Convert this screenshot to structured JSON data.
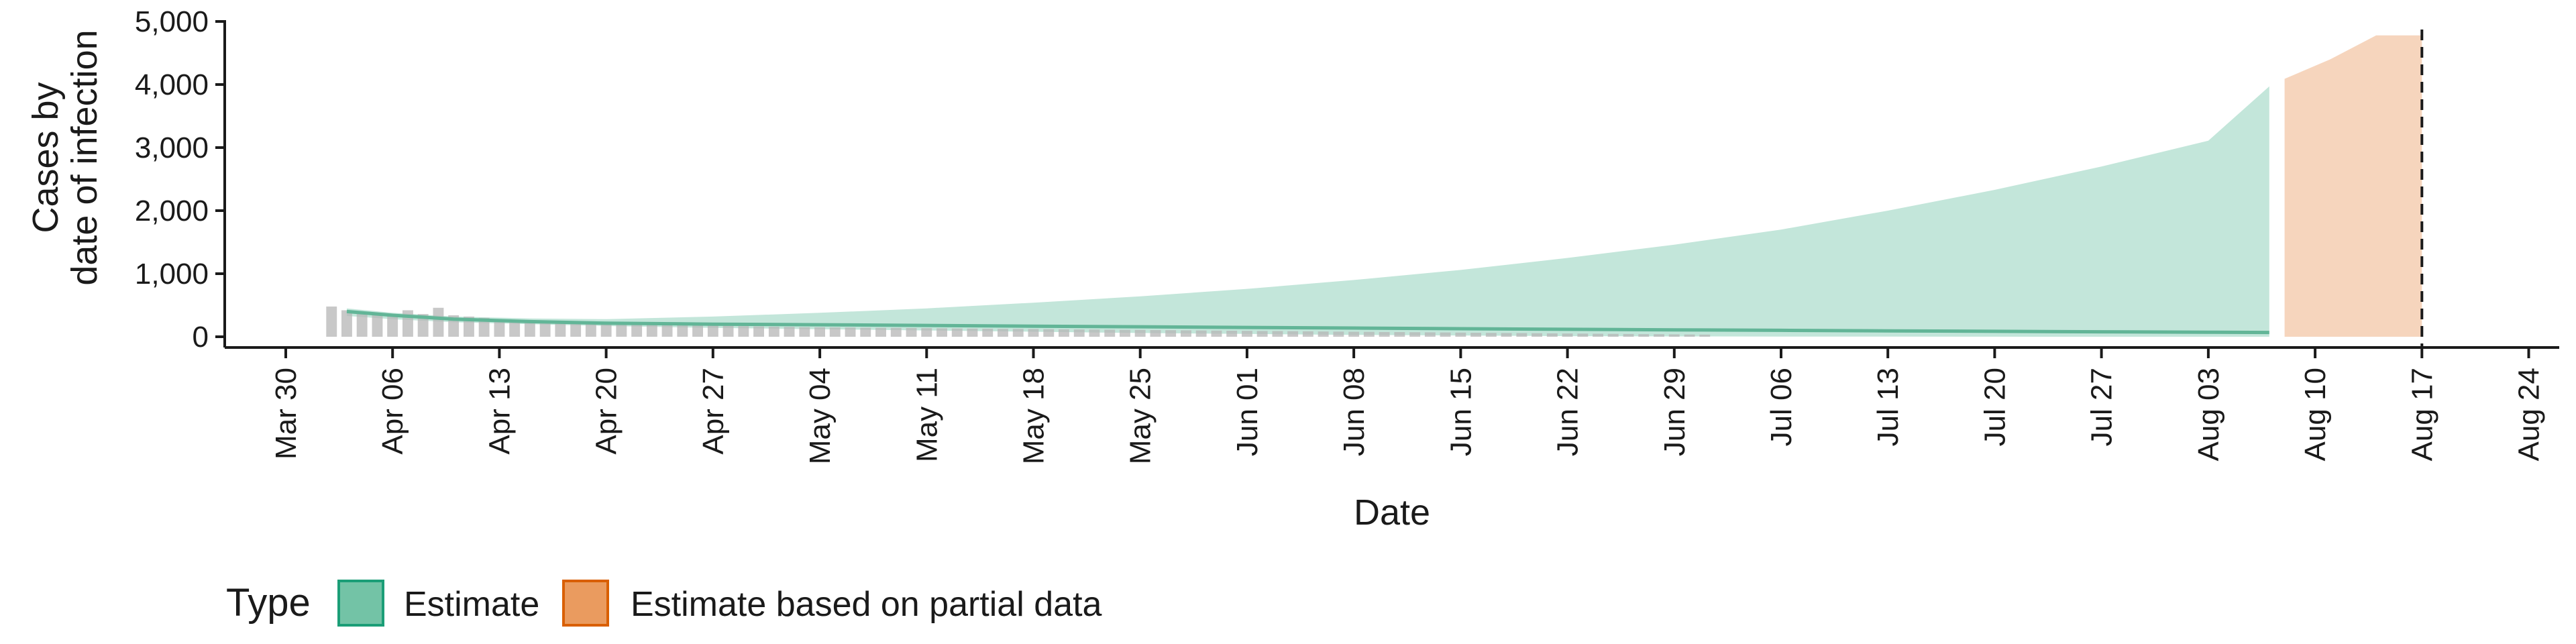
{
  "chart_data": {
    "type": "area",
    "ylabel_lines": [
      "Cases by",
      "date of infection"
    ],
    "xlabel": "Date",
    "ylim": [
      0,
      5000
    ],
    "y_ticks": [
      0,
      1000,
      2000,
      3000,
      4000,
      5000
    ],
    "y_tick_labels": [
      "0",
      "1,000",
      "2,000",
      "3,000",
      "4,000",
      "5,000"
    ],
    "x_domain": [
      "2020-03-26",
      "2020-08-26"
    ],
    "x_ticks": [
      "2020-03-30",
      "2020-04-06",
      "2020-04-13",
      "2020-04-20",
      "2020-04-27",
      "2020-05-04",
      "2020-05-11",
      "2020-05-18",
      "2020-05-25",
      "2020-06-01",
      "2020-06-08",
      "2020-06-15",
      "2020-06-22",
      "2020-06-29",
      "2020-07-06",
      "2020-07-13",
      "2020-07-20",
      "2020-07-27",
      "2020-08-03",
      "2020-08-10",
      "2020-08-17",
      "2020-08-24"
    ],
    "x_tick_labels": [
      "Mar 30",
      "Apr 06",
      "Apr 13",
      "Apr 20",
      "Apr 27",
      "May 04",
      "May 11",
      "May 18",
      "May 25",
      "Jun 01",
      "Jun 08",
      "Jun 15",
      "Jun 22",
      "Jun 29",
      "Jul 06",
      "Jul 13",
      "Jul 20",
      "Jul 27",
      "Aug 03",
      "Aug 10",
      "Aug 17",
      "Aug 24"
    ],
    "vline_date": "2020-08-17",
    "legend": {
      "title": "Type",
      "position": "bottom",
      "entries": [
        {
          "label": "Estimate",
          "fill": "#73c3a6",
          "border": "#1b9e77"
        },
        {
          "label": "Estimate based on partial data",
          "fill": "#ea9b5f",
          "border": "#d95f02"
        }
      ]
    },
    "colors": {
      "estimate_band": "#c3e6da",
      "estimate_line": "#62b597",
      "partial_band": "#f6d5bd",
      "bars": "#b5b5b5",
      "vline": "#1a1a1a"
    },
    "bars": {
      "start_date": "2020-04-02",
      "values": [
        480,
        420,
        380,
        360,
        330,
        420,
        360,
        460,
        340,
        320,
        300,
        270,
        260,
        250,
        240,
        235,
        225,
        215,
        210,
        205,
        200,
        195,
        190,
        185,
        180,
        176,
        172,
        168,
        164,
        160,
        156,
        152,
        150,
        148,
        146,
        144,
        142,
        140,
        138,
        136,
        134,
        132,
        130,
        128,
        126,
        124,
        122,
        120,
        118,
        116,
        114,
        112,
        110,
        108,
        106,
        104,
        102,
        100,
        98,
        96,
        94,
        92,
        90,
        88,
        86,
        84,
        82,
        80,
        78,
        76,
        74,
        72,
        70,
        68,
        66,
        64,
        62,
        60,
        58,
        56,
        54,
        52,
        50,
        48,
        46,
        44,
        42,
        40,
        38,
        36,
        34
      ]
    },
    "series": [
      {
        "name": "Estimate",
        "dates": [
          "2020-04-03",
          "2020-04-06",
          "2020-04-10",
          "2020-04-15",
          "2020-04-20",
          "2020-04-27",
          "2020-05-04",
          "2020-05-11",
          "2020-05-18",
          "2020-05-25",
          "2020-06-01",
          "2020-06-08",
          "2020-06-15",
          "2020-06-22",
          "2020-06-29",
          "2020-07-06",
          "2020-07-13",
          "2020-07-20",
          "2020-07-27",
          "2020-08-03",
          "2020-08-07"
        ],
        "upper": [
          450,
          380,
          320,
          290,
          280,
          320,
          380,
          450,
          540,
          640,
          760,
          900,
          1060,
          1250,
          1460,
          1700,
          2000,
          2330,
          2700,
          3110,
          3970
        ],
        "lower": [
          330,
          280,
          230,
          200,
          170,
          140,
          120,
          100,
          80,
          60,
          45,
          30,
          20,
          10,
          5,
          3,
          2,
          1,
          0,
          0,
          0
        ],
        "median": [
          400,
          340,
          280,
          240,
          215,
          200,
          190,
          180,
          168,
          158,
          148,
          138,
          128,
          118,
          110,
          102,
          94,
          86,
          79,
          72,
          68
        ]
      },
      {
        "name": "Estimate based on partial data",
        "dates": [
          "2020-08-08",
          "2020-08-11",
          "2020-08-14",
          "2020-08-17"
        ],
        "upper": [
          4090,
          4400,
          4780,
          4780
        ],
        "lower": [
          0,
          0,
          0,
          0
        ]
      }
    ]
  }
}
